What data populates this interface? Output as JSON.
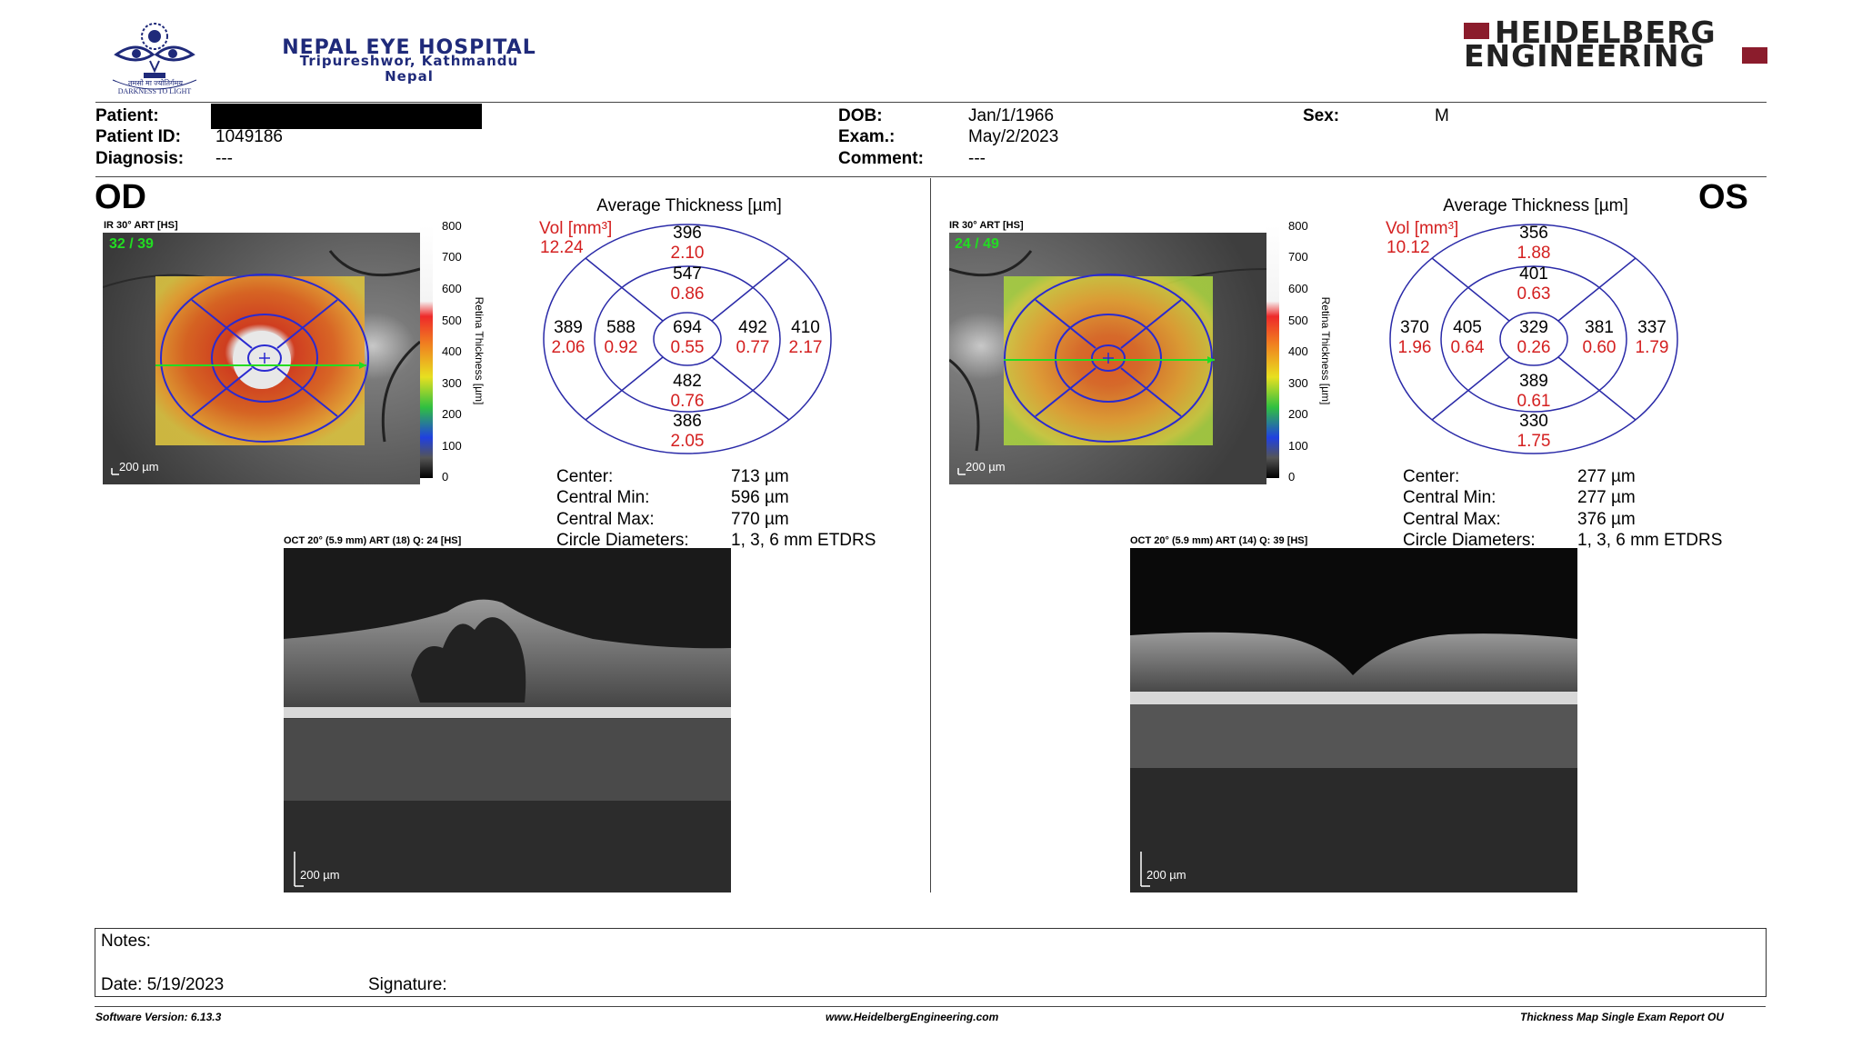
{
  "hospital": {
    "name": "NEPAL EYE HOSPITAL",
    "line2": "Tripureshwor, Kathmandu",
    "line3": "Nepal",
    "logo_motto": "DARKNESS TO LIGHT",
    "logo_script": "तमसो मा ज्योतिर्गमय"
  },
  "brand": {
    "line1": "HEIDELBERG",
    "line2": "ENGINEERING",
    "accent": "#8b1c2c"
  },
  "patient": {
    "patient_label": "Patient:",
    "patient_value": "",
    "id_label": "Patient ID:",
    "id_value": "1049186",
    "diag_label": "Diagnosis:",
    "diag_value": "---",
    "dob_label": "DOB:",
    "dob_value": "Jan/1/1966",
    "exam_label": "Exam.:",
    "exam_value": "May/2/2023",
    "comment_label": "Comment:",
    "comment_value": "---",
    "sex_label": "Sex:",
    "sex_value": "M"
  },
  "od": {
    "side": "OD",
    "ir_label": "IR 30° ART [HS]",
    "frame": "32 / 39",
    "scale": "200 µm",
    "colorbar_ticks": [
      "800",
      "700",
      "600",
      "500",
      "400",
      "300",
      "200",
      "100",
      "0"
    ],
    "colorbar_label": "Retina Thickness [µm]",
    "grid_title": "Average Thickness [µm]",
    "vol_label": "Vol [mm³]",
    "vol_value": "12.24",
    "sectors": {
      "outer_top": [
        "396",
        "2.10"
      ],
      "inner_top": [
        "547",
        "0.86"
      ],
      "outer_left": [
        "389",
        "2.06"
      ],
      "inner_left": [
        "588",
        "0.92"
      ],
      "center": [
        "694",
        "0.55"
      ],
      "inner_right": [
        "492",
        "0.77"
      ],
      "outer_right": [
        "410",
        "2.17"
      ],
      "inner_bottom": [
        "482",
        "0.76"
      ],
      "outer_bottom": [
        "386",
        "2.05"
      ]
    },
    "stats": [
      {
        "label": "Center:",
        "value": "713 µm"
      },
      {
        "label": "Central Min:",
        "value": "596 µm"
      },
      {
        "label": "Central Max:",
        "value": "770 µm"
      },
      {
        "label": "Circle Diameters:",
        "value": "1, 3, 6 mm ETDRS"
      }
    ],
    "oct_label": "OCT 20° (5.9 mm) ART (18) Q: 24 [HS]",
    "oct_scale": "200 µm"
  },
  "os": {
    "side": "OS",
    "ir_label": "IR 30° ART [HS]",
    "frame": "24 / 49",
    "scale": "200 µm",
    "colorbar_ticks": [
      "800",
      "700",
      "600",
      "500",
      "400",
      "300",
      "200",
      "100",
      "0"
    ],
    "colorbar_label": "Retina Thickness [µm]",
    "grid_title": "Average Thickness [µm]",
    "vol_label": "Vol [mm³]",
    "vol_value": "10.12",
    "sectors": {
      "outer_top": [
        "356",
        "1.88"
      ],
      "inner_top": [
        "401",
        "0.63"
      ],
      "outer_left": [
        "370",
        "1.96"
      ],
      "inner_left": [
        "405",
        "0.64"
      ],
      "center": [
        "329",
        "0.26"
      ],
      "inner_right": [
        "381",
        "0.60"
      ],
      "outer_right": [
        "337",
        "1.79"
      ],
      "inner_bottom": [
        "389",
        "0.61"
      ],
      "outer_bottom": [
        "330",
        "1.75"
      ]
    },
    "stats": [
      {
        "label": "Center:",
        "value": "277 µm"
      },
      {
        "label": "Central Min:",
        "value": "277 µm"
      },
      {
        "label": "Central Max:",
        "value": "376 µm"
      },
      {
        "label": "Circle Diameters:",
        "value": "1, 3, 6 mm ETDRS"
      }
    ],
    "oct_label": "OCT 20° (5.9 mm) ART (14) Q: 39 [HS]",
    "oct_scale": "200 µm"
  },
  "notes": {
    "notes_label": "Notes:",
    "date_label": "Date: 5/19/2023",
    "signature_label": "Signature:"
  },
  "footer": {
    "version": "Software Version: 6.13.3",
    "url": "www.HeidelbergEngineering.com",
    "report": "Thickness Map Single Exam Report OU"
  },
  "colors": {
    "grid_line": "#2a2aa8",
    "volume_text": "#d42020",
    "green_text": "#22dd22"
  }
}
